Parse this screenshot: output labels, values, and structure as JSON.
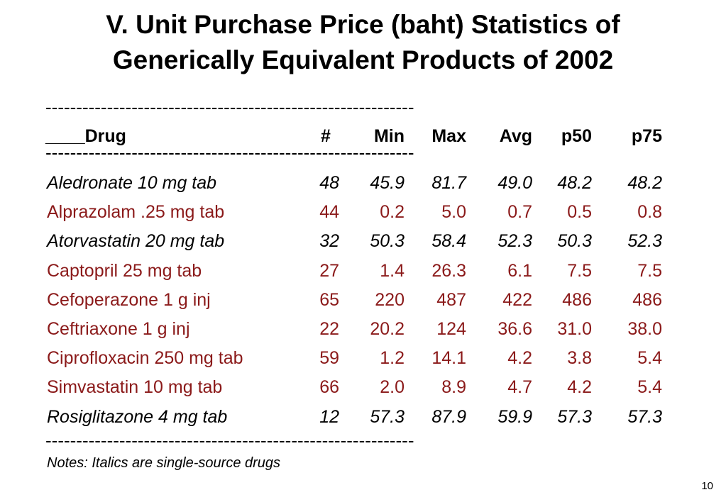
{
  "slide": {
    "title_line1": "V. Unit Purchase Price (baht) Statistics of",
    "title_line2": "Generically Equivalent Products of 2002",
    "rule_text": "------------------------------------------------------------",
    "header": {
      "drug": "____Drug",
      "n": "#",
      "min": "Min",
      "max": "Max",
      "avg": "Avg",
      "p50": "p50",
      "p75": "p75"
    },
    "rows": [
      {
        "drug": "Aledronate 10 mg tab",
        "n": "48",
        "min": "45.9",
        "max": "81.7",
        "avg": "49.0",
        "p50": "48.2",
        "p75": "48.2",
        "italic": true,
        "color": "#000000"
      },
      {
        "drug": "Alprazolam .25 mg tab",
        "n": "44",
        "min": "0.2",
        "max": "5.0",
        "avg": "0.7",
        "p50": "0.5",
        "p75": "0.8",
        "italic": false,
        "color": "#8b1a1a"
      },
      {
        "drug": "Atorvastatin 20 mg tab",
        "n": "32",
        "min": "50.3",
        "max": "58.4",
        "avg": "52.3",
        "p50": "50.3",
        "p75": "52.3",
        "italic": true,
        "color": "#000000"
      },
      {
        "drug": "Captopril 25 mg tab",
        "n": "27",
        "min": "1.4",
        "max": "26.3",
        "avg": "6.1",
        "p50": "7.5",
        "p75": "7.5",
        "italic": false,
        "color": "#8b1a1a"
      },
      {
        "drug": "Cefoperazone 1 g inj",
        "n": "65",
        "min": "220",
        "max": "487",
        "avg": "422",
        "p50": "486",
        "p75": "486",
        "italic": false,
        "color": "#8b1a1a"
      },
      {
        "drug": "Ceftriaxone 1 g inj",
        "n": "22",
        "min": "20.2",
        "max": "124",
        "avg": "36.6",
        "p50": "31.0",
        "p75": "38.0",
        "italic": false,
        "color": "#8b1a1a"
      },
      {
        "drug": "Ciprofloxacin 250 mg tab",
        "n": "59",
        "min": "1.2",
        "max": "14.1",
        "avg": "4.2",
        "p50": "3.8",
        "p75": "5.4",
        "italic": false,
        "color": "#8b1a1a"
      },
      {
        "drug": "Simvastatin 10 mg tab",
        "n": "66",
        "min": "2.0",
        "max": "8.9",
        "avg": "4.7",
        "p50": "4.2",
        "p75": "5.4",
        "italic": false,
        "color": "#8b1a1a"
      },
      {
        "drug": "Rosiglitazone 4 mg tab",
        "n": "12",
        "min": "57.3",
        "max": "87.9",
        "avg": "59.9",
        "p50": "57.3",
        "p75": "57.3",
        "italic": true,
        "color": "#000000"
      }
    ],
    "notes": "Notes: Italics are single-source drugs",
    "page_number": "10"
  }
}
